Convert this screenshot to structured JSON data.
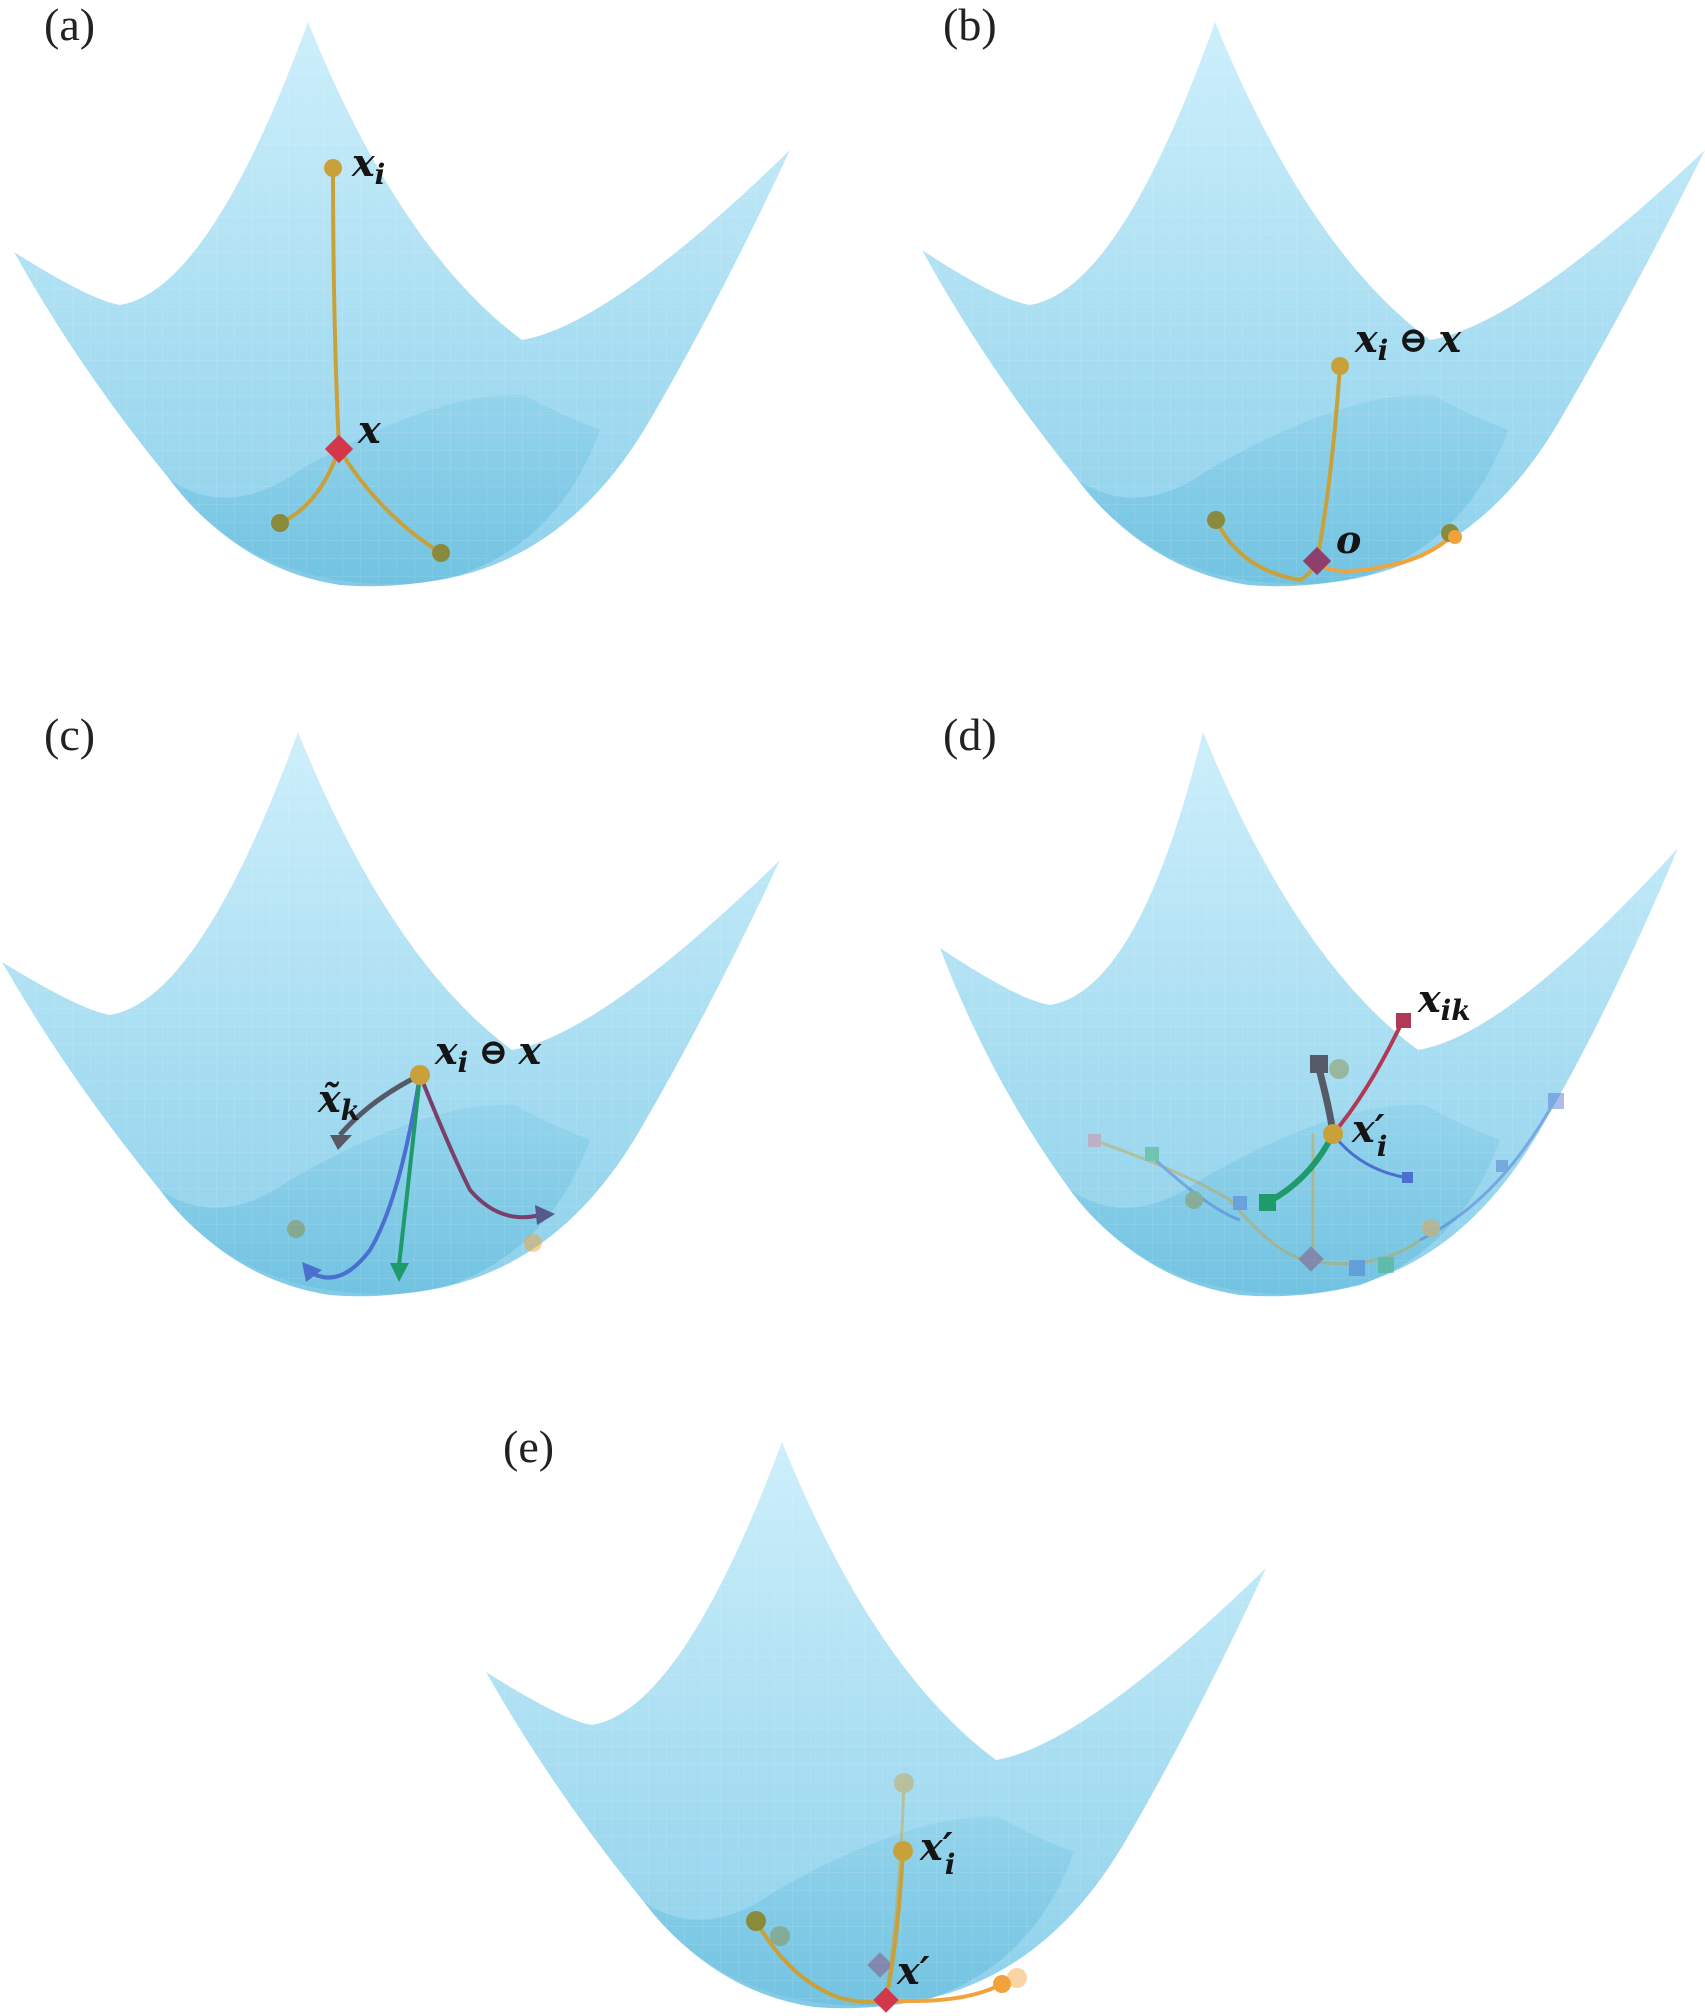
{
  "panels": {
    "a": {
      "label": "(a)",
      "xi": "x",
      "xi_sub": "i",
      "x": "x"
    },
    "b": {
      "label": "(b)",
      "lhs": "x",
      "lhs_sub": "i",
      "op": "⊖",
      "rhs": "x",
      "origin": "o"
    },
    "c": {
      "label": "(c)",
      "lhs": "x",
      "lhs_sub": "i",
      "op": "⊖",
      "rhs": "x",
      "xk": "x̃",
      "xk_sub": "k"
    },
    "d": {
      "label": "(d)",
      "xik": "x",
      "xik_sub": "ik",
      "xi_prime": "x′",
      "xi_prime_sub": "i"
    },
    "e": {
      "label": "(e)",
      "xi_prime": "x′",
      "xi_prime_sub": "i",
      "x_prime": "x′"
    }
  },
  "colors": {
    "surface_light": "#bfe9f8",
    "surface_mid": "#9fd9ef",
    "surface_dark": "#6cc0e0",
    "gold": "#c9a13a",
    "orange": "#f2a23a",
    "olive": "#8a8a3c",
    "red_marker": "#d2384a",
    "maroon_marker": "#8e3f6b",
    "dark_gray": "#555a66",
    "blue": "#4a6fcf",
    "green": "#1f9a6a",
    "crimson": "#b03a55"
  }
}
